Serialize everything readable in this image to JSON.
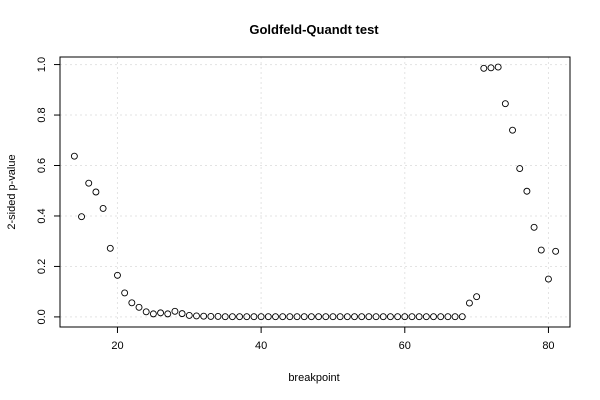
{
  "chart_data": {
    "type": "scatter",
    "title": "Goldfeld-Quandt test",
    "xlabel": "breakpoint",
    "ylabel": "2-sided p-value",
    "xlim": [
      12,
      83
    ],
    "ylim": [
      -0.04,
      1.03
    ],
    "xticks": [
      20,
      40,
      60,
      80
    ],
    "yticks": [
      0.0,
      0.2,
      0.4,
      0.6,
      0.8,
      1.0
    ],
    "xtick_labels": [
      "20",
      "40",
      "60",
      "80"
    ],
    "ytick_labels": [
      "0.0",
      "0.2",
      "0.4",
      "0.6",
      "0.8",
      "1.0"
    ],
    "grid": true,
    "marker": "open-circle",
    "x": [
      14,
      15,
      16,
      17,
      18,
      19,
      20,
      21,
      22,
      23,
      24,
      25,
      26,
      27,
      28,
      29,
      30,
      31,
      32,
      33,
      34,
      35,
      36,
      37,
      38,
      39,
      40,
      41,
      42,
      43,
      44,
      45,
      46,
      47,
      48,
      49,
      50,
      51,
      52,
      53,
      54,
      55,
      56,
      57,
      58,
      59,
      60,
      61,
      62,
      63,
      64,
      65,
      66,
      67,
      68,
      69,
      70,
      71,
      72,
      73,
      74,
      75,
      76,
      77,
      78,
      79,
      80,
      81
    ],
    "y": [
      0.637,
      0.397,
      0.53,
      0.495,
      0.43,
      0.272,
      0.165,
      0.095,
      0.056,
      0.038,
      0.02,
      0.012,
      0.016,
      0.012,
      0.022,
      0.013,
      0.006,
      0.004,
      0.003,
      0.002,
      0.002,
      0.001,
      0.001,
      0.001,
      0.001,
      0.001,
      0.001,
      0.001,
      0.001,
      0.001,
      0.001,
      0.001,
      0.001,
      0.001,
      0.001,
      0.001,
      0.001,
      0.001,
      0.001,
      0.001,
      0.001,
      0.001,
      0.001,
      0.001,
      0.001,
      0.001,
      0.001,
      0.001,
      0.001,
      0.001,
      0.001,
      0.001,
      0.001,
      0.001,
      0.001,
      0.055,
      0.08,
      0.985,
      0.987,
      0.99,
      0.845,
      0.74,
      0.588,
      0.498,
      0.355,
      0.265,
      0.15,
      0.26
    ]
  },
  "colors": {
    "background": "#ffffff",
    "axis": "#000000",
    "grid": "#e3e3e3",
    "point": "#000000"
  }
}
